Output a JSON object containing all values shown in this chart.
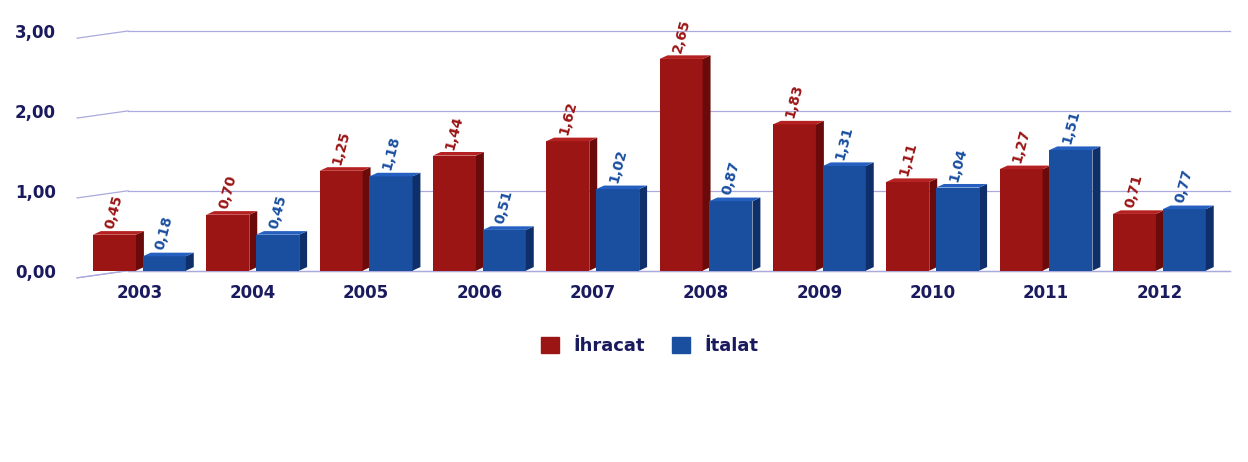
{
  "years": [
    "2003",
    "2004",
    "2005",
    "2006",
    "2007",
    "2008",
    "2009",
    "2010",
    "2011",
    "2012"
  ],
  "ihracat": [
    0.45,
    0.7,
    1.25,
    1.44,
    1.62,
    2.65,
    1.83,
    1.11,
    1.27,
    0.71
  ],
  "ithalat": [
    0.18,
    0.45,
    1.18,
    0.51,
    1.02,
    0.87,
    1.31,
    1.04,
    1.51,
    0.77
  ],
  "ihracat_color": "#9B1515",
  "ihracat_color_dark": "#6B0A0A",
  "ihracat_color_top": "#B52020",
  "ithalat_color": "#1A4FA0",
  "ithalat_color_dark": "#0F2F6A",
  "ithalat_color_top": "#2560C0",
  "ihracat_label": "İhracat",
  "ithalat_label": "İtalat",
  "ylim": [
    0,
    3.2
  ],
  "yticks": [
    0.0,
    1.0,
    2.0,
    3.0
  ],
  "ytick_labels": [
    "0,00",
    "1,00",
    "2,00",
    "3,00"
  ],
  "background_color": "#FFFFFF",
  "grid_color": "#AAAADD",
  "bar_width": 0.38,
  "value_fontsize": 10,
  "tick_fontsize": 12
}
